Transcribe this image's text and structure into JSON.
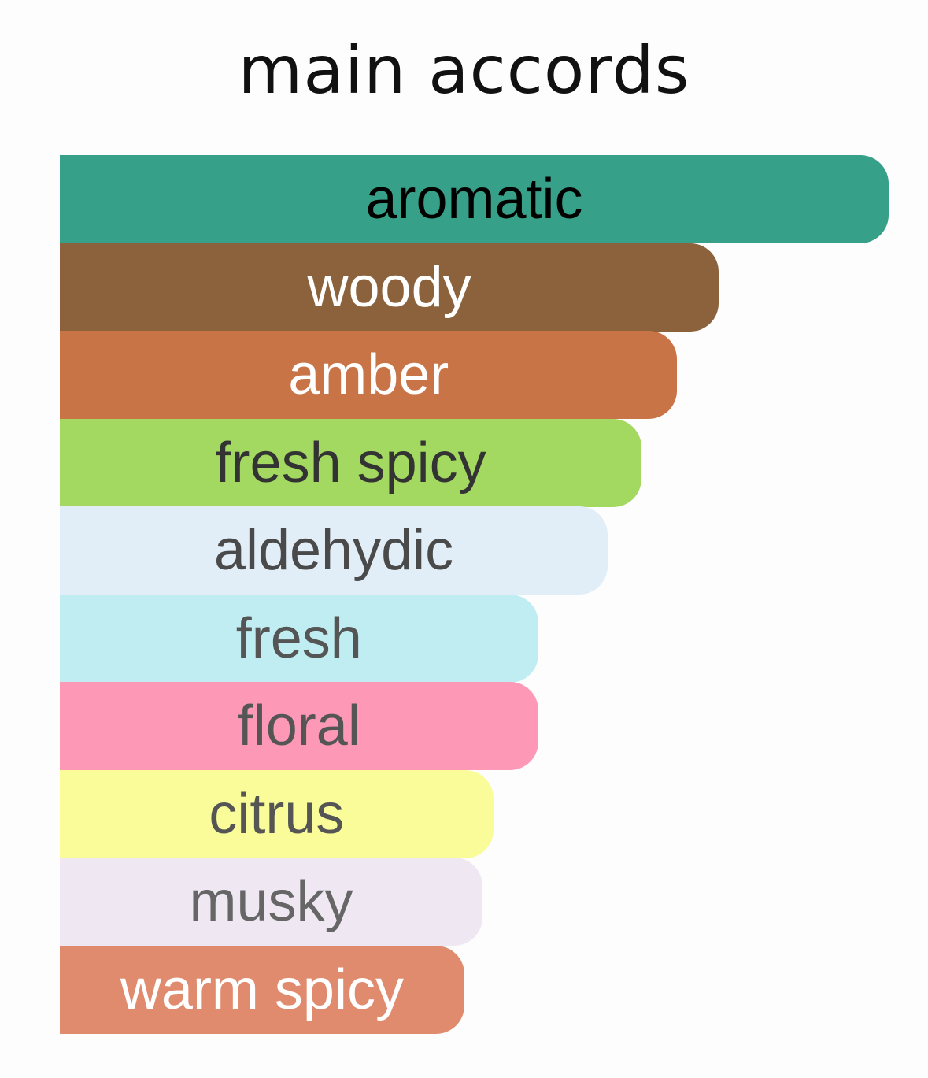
{
  "chart_data": {
    "type": "bar",
    "orientation": "horizontal",
    "title": "main accords",
    "categories": [
      "aromatic",
      "woody",
      "amber",
      "fresh spicy",
      "aldehydic",
      "fresh",
      "floral",
      "citrus",
      "musky",
      "warm spicy"
    ],
    "values": [
      100,
      79.5,
      74.5,
      70.2,
      66.1,
      57.7,
      57.7,
      52.3,
      51.0,
      48.8
    ],
    "unit": "% of strongest accord (estimated)",
    "colors": [
      "#37a089",
      "#8b623c",
      "#c97446",
      "#a3d961",
      "#e1eef8",
      "#bfedf1",
      "#fe98b7",
      "#f9fc98",
      "#efe8f3",
      "#e08b6e"
    ],
    "label_colors": [
      "#000000",
      "#ffffff",
      "#ffffff",
      "#333333",
      "#4a4a4a",
      "#555555",
      "#555555",
      "#555555",
      "#666666",
      "#ffffff"
    ],
    "axes_visible": false,
    "grid": false,
    "legend": "none"
  }
}
